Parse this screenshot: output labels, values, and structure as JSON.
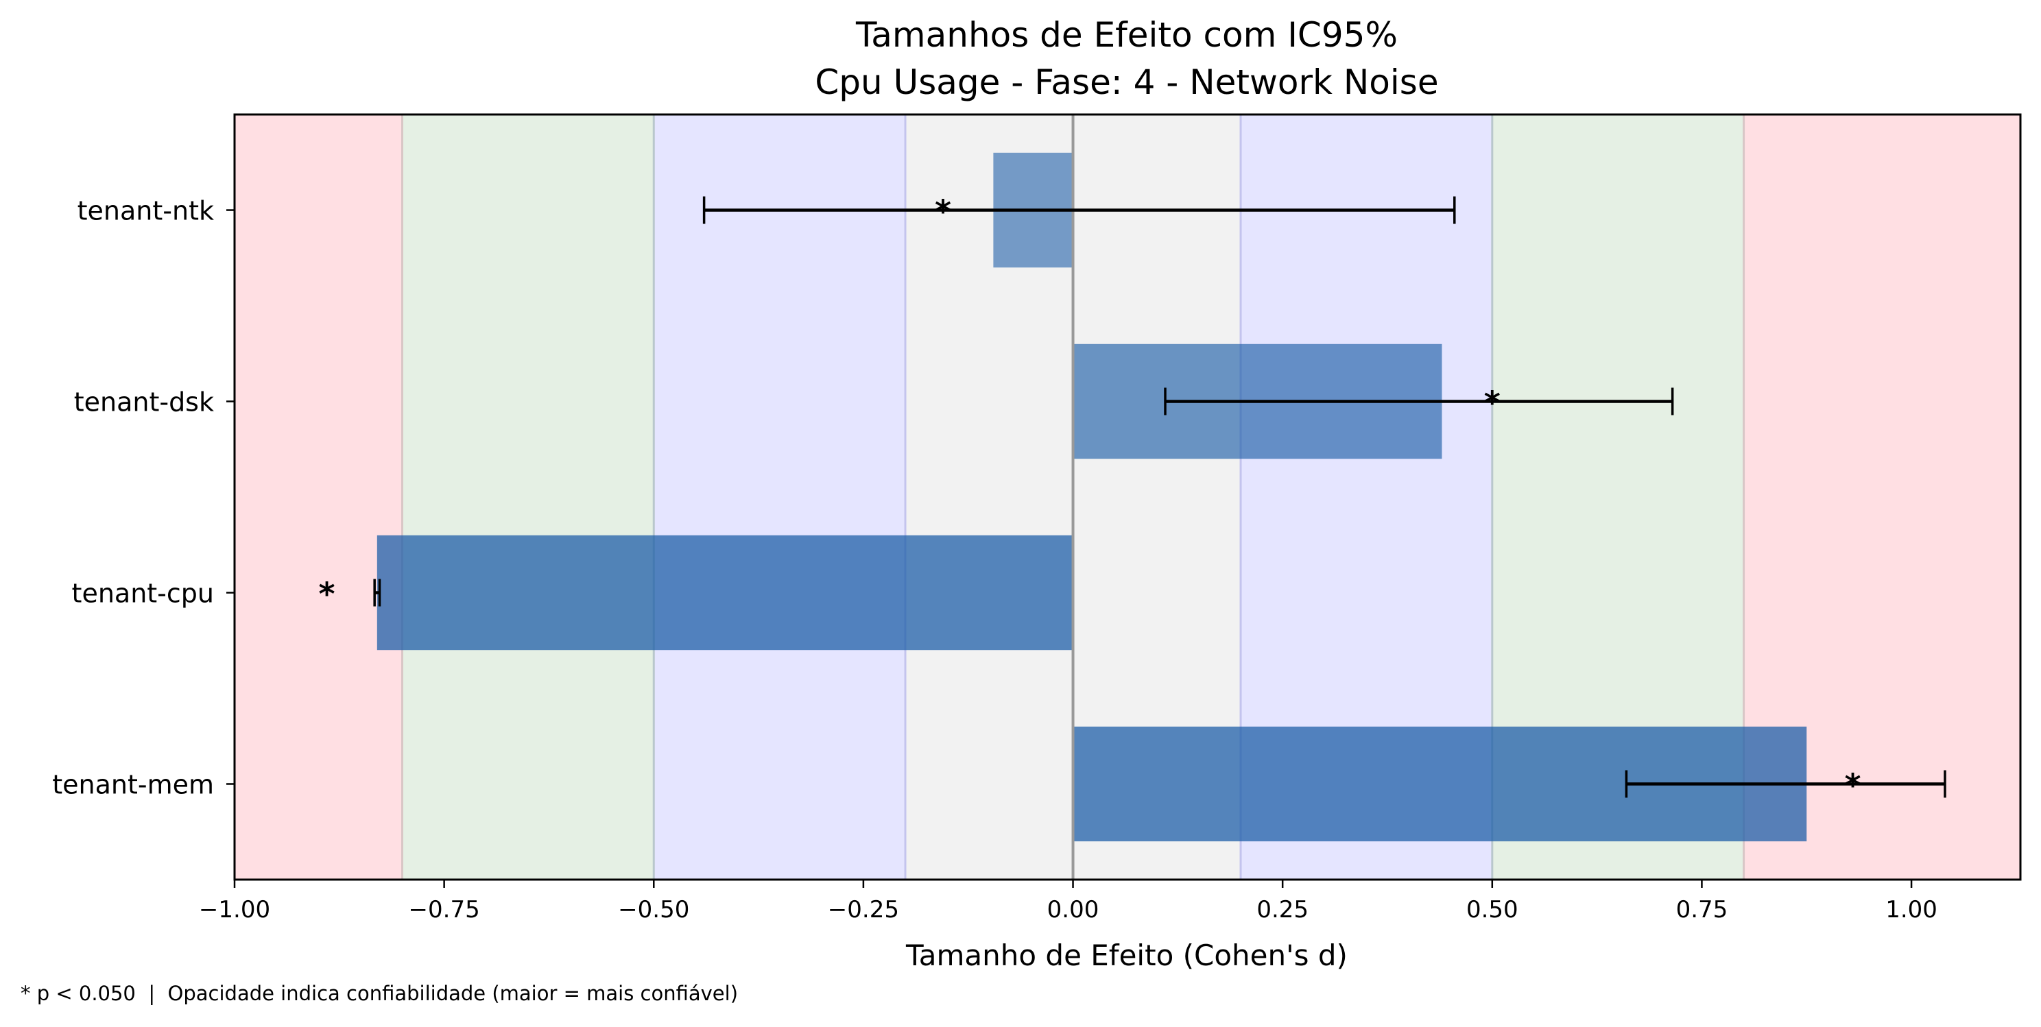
{
  "chart_data": {
    "type": "bar",
    "orientation": "horizontal",
    "title_line1": "Tamanhos de Efeito com IC95%",
    "title_line2": "Cpu Usage - Fase: 4 - Network Noise",
    "xlabel": "Tamanho de Efeito (Cohen's d)",
    "ylabel": "",
    "xlim": [
      -1.0,
      1.13
    ],
    "xticks": [
      "−1.00",
      "−0.75",
      "−0.50",
      "−0.25",
      "0.00",
      "0.25",
      "0.50",
      "0.75",
      "1.00"
    ],
    "xtick_values": [
      -1.0,
      -0.75,
      -0.5,
      -0.25,
      0.0,
      0.25,
      0.5,
      0.75,
      1.0
    ],
    "categories": [
      "tenant-ntk",
      "tenant-dsk",
      "tenant-cpu",
      "tenant-mem"
    ],
    "values": [
      -0.095,
      0.44,
      -0.83,
      0.875
    ],
    "ci_low": [
      -0.44,
      0.11,
      -0.833,
      0.66
    ],
    "ci_high": [
      0.455,
      0.715,
      -0.827,
      1.04
    ],
    "opacity": [
      0.6,
      0.65,
      0.75,
      0.75
    ],
    "significant_marker": "*",
    "significant": [
      true,
      true,
      true,
      true
    ],
    "marker_x": [
      -0.155,
      0.5,
      -0.89,
      0.93
    ],
    "background_bands": [
      {
        "from": -1.2,
        "to": -0.8,
        "color": "#ffdfe3"
      },
      {
        "from": -0.8,
        "to": -0.5,
        "color": "#e5f0e4"
      },
      {
        "from": -0.5,
        "to": -0.2,
        "color": "#e5e5ff"
      },
      {
        "from": -0.2,
        "to": 0.2,
        "color": "#f2f2f2"
      },
      {
        "from": 0.2,
        "to": 0.5,
        "color": "#e5e5ff"
      },
      {
        "from": 0.5,
        "to": 0.8,
        "color": "#e5f0e4"
      },
      {
        "from": 0.8,
        "to": 1.2,
        "color": "#ffdfe3"
      }
    ],
    "bar_color": "#1f5fa8",
    "grid": false
  },
  "footnote": "* p < 0.050  |  Opacidade indica confiabilidade (maior = mais confiável)"
}
